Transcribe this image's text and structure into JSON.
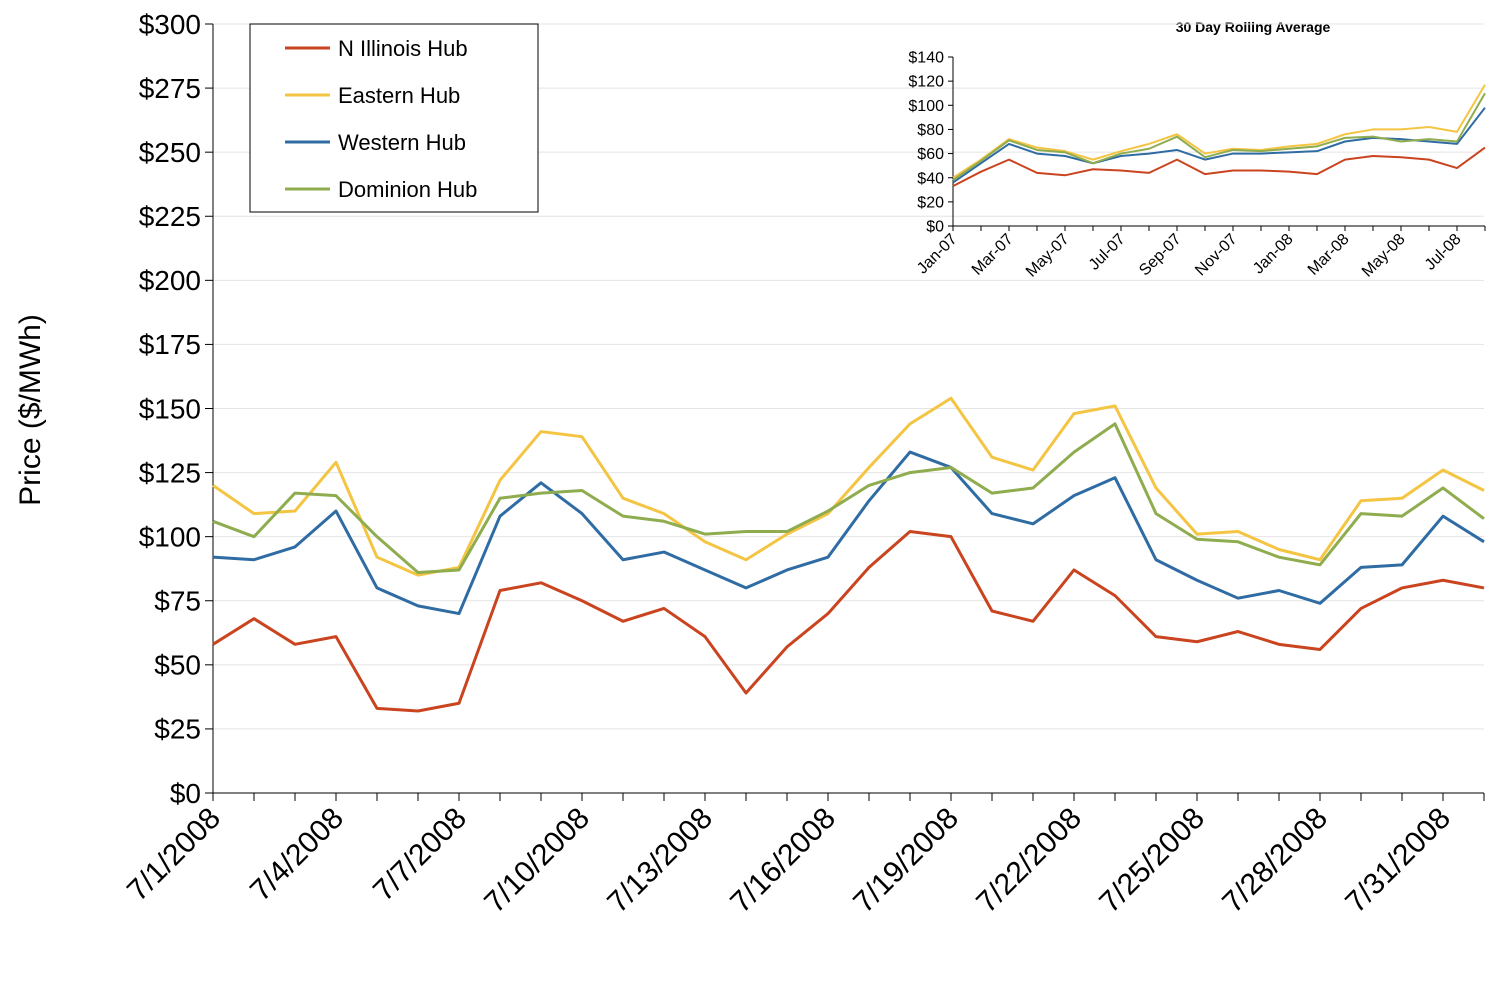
{
  "chart_data": [
    {
      "type": "line",
      "y_label": "Price ($/MWh)",
      "categories": [
        "7/1/2008",
        null,
        null,
        "7/4/2008",
        null,
        null,
        "7/7/2008",
        null,
        null,
        "7/10/2008",
        null,
        null,
        "7/13/2008",
        null,
        null,
        "7/16/2008",
        null,
        null,
        "7/19/2008",
        null,
        null,
        "7/22/2008",
        null,
        null,
        "7/25/2008",
        null,
        null,
        "7/28/2008",
        null,
        null,
        "7/31/2008",
        null
      ],
      "series": [
        {
          "name": "N Illinois Hub",
          "color": "#c9441f",
          "values": [
            58,
            68,
            58,
            61,
            33,
            32,
            35,
            79,
            82,
            75,
            67,
            72,
            61,
            39,
            57,
            70,
            88,
            102,
            100,
            71,
            67,
            87,
            77,
            61,
            59,
            63,
            58,
            56,
            72,
            80,
            83,
            80
          ]
        },
        {
          "name": "Eastern Hub",
          "color": "#f4c443",
          "values": [
            120,
            109,
            110,
            129,
            92,
            85,
            88,
            122,
            141,
            139,
            115,
            109,
            98,
            91,
            101,
            109,
            127,
            144,
            154,
            131,
            126,
            148,
            151,
            119,
            101,
            102,
            95,
            91,
            114,
            115,
            126,
            118
          ]
        },
        {
          "name": "Western Hub",
          "color": "#2f6ca3",
          "values": [
            92,
            91,
            96,
            110,
            80,
            73,
            70,
            108,
            121,
            109,
            91,
            94,
            87,
            80,
            87,
            92,
            114,
            133,
            127,
            109,
            105,
            116,
            123,
            91,
            83,
            76,
            79,
            74,
            88,
            89,
            108,
            98
          ]
        },
        {
          "name": "Dominion Hub",
          "color": "#8fac4f",
          "values": [
            106,
            100,
            117,
            116,
            100,
            86,
            87,
            115,
            117,
            118,
            108,
            106,
            101,
            102,
            102,
            110,
            120,
            125,
            127,
            117,
            119,
            133,
            144,
            109,
            99,
            98,
            92,
            89,
            109,
            108,
            119,
            107
          ]
        }
      ],
      "ylim": [
        0,
        300
      ],
      "yticks": [
        {
          "value": 0,
          "label": "$0"
        },
        {
          "value": 25,
          "label": "$25"
        },
        {
          "value": 50,
          "label": "$50"
        },
        {
          "value": 75,
          "label": "$75"
        },
        {
          "value": 100,
          "label": "$100"
        },
        {
          "value": 125,
          "label": "$125"
        },
        {
          "value": 150,
          "label": "$150"
        },
        {
          "value": 175,
          "label": "$175"
        },
        {
          "value": 200,
          "label": "$200"
        },
        {
          "value": 225,
          "label": "$225"
        },
        {
          "value": 250,
          "label": "$250"
        },
        {
          "value": 275,
          "label": "$275"
        },
        {
          "value": 300,
          "label": "$300"
        }
      ],
      "grid": true,
      "legend": "upper left"
    },
    {
      "type": "line",
      "title": "30 Day Rolling Average",
      "categories": [
        "Jan-07",
        null,
        "Mar-07",
        null,
        "May-07",
        null,
        "Jul-07",
        null,
        "Sep-07",
        null,
        "Nov-07",
        null,
        "Jan-08",
        null,
        "Mar-08",
        null,
        "May-08",
        null,
        "Jul-08",
        null
      ],
      "series": [
        {
          "name": "N Illinois Hub",
          "color": "#c9441f",
          "values": [
            33,
            45,
            55,
            44,
            42,
            47,
            46,
            44,
            55,
            43,
            46,
            46,
            45,
            43,
            55,
            58,
            57,
            55,
            48,
            65
          ]
        },
        {
          "name": "Eastern Hub",
          "color": "#f4c443",
          "values": [
            40,
            55,
            72,
            65,
            62,
            55,
            62,
            68,
            76,
            60,
            64,
            63,
            66,
            68,
            76,
            80,
            80,
            82,
            78,
            117
          ]
        },
        {
          "name": "Western Hub",
          "color": "#2f6ca3",
          "values": [
            36,
            52,
            68,
            60,
            58,
            52,
            58,
            60,
            63,
            55,
            60,
            60,
            61,
            62,
            70,
            73,
            72,
            70,
            68,
            98
          ]
        },
        {
          "name": "Dominion Hub",
          "color": "#8fac4f",
          "values": [
            38,
            54,
            71,
            63,
            61,
            52,
            60,
            64,
            74,
            57,
            63,
            62,
            64,
            66,
            73,
            74,
            70,
            72,
            70,
            110
          ]
        }
      ],
      "ylim": [
        0,
        140
      ],
      "yticks": [
        {
          "value": 0,
          "label": "$0"
        },
        {
          "value": 20,
          "label": "$20"
        },
        {
          "value": 40,
          "label": "$40"
        },
        {
          "value": 60,
          "label": "$60"
        },
        {
          "value": 80,
          "label": "$80"
        },
        {
          "value": 100,
          "label": "$100"
        },
        {
          "value": 120,
          "label": "$120"
        },
        {
          "value": 140,
          "label": "$140"
        }
      ],
      "grid": false
    }
  ]
}
